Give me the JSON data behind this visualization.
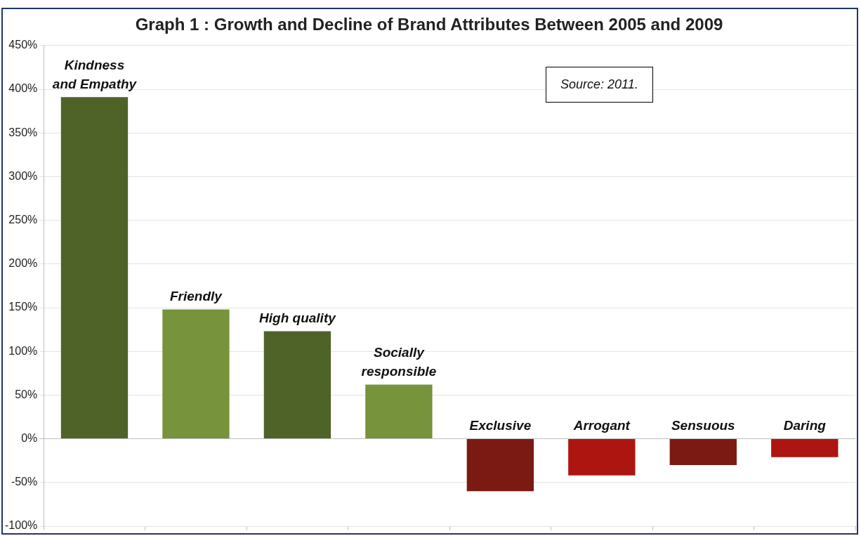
{
  "chart_data": {
    "type": "bar",
    "title": "Graph 1 : Growth and Decline of Brand Attributes Between 2005 and 2009",
    "categories": [
      "Kindness\nand Empathy",
      "Friendly",
      "High quality",
      "Socially\nresponsible",
      "Exclusive",
      "Arrogant",
      "Sensuous",
      "Daring"
    ],
    "values": [
      391,
      148,
      123,
      62,
      -60,
      -42,
      -30,
      -21
    ],
    "colors": [
      "#4f6228",
      "#77933c",
      "#4f6228",
      "#77933c",
      "#7b1a13",
      "#ad1510",
      "#7b1a13",
      "#ad1510"
    ],
    "ylim": [
      -100,
      450
    ],
    "yticks": [
      {
        "value": -100,
        "label": "-100%"
      },
      {
        "value": -50,
        "label": "-50%"
      },
      {
        "value": 0,
        "label": "0%"
      },
      {
        "value": 50,
        "label": "50%"
      },
      {
        "value": 100,
        "label": "100%"
      },
      {
        "value": 150,
        "label": "150%"
      },
      {
        "value": 200,
        "label": "200%"
      },
      {
        "value": 250,
        "label": "250%"
      },
      {
        "value": 300,
        "label": "300%"
      },
      {
        "value": 350,
        "label": "350%"
      },
      {
        "value": 400,
        "label": "400%"
      },
      {
        "value": 450,
        "label": "450%"
      }
    ],
    "grid": "y",
    "legend": false,
    "annotations": [
      "Source: 2011."
    ]
  }
}
